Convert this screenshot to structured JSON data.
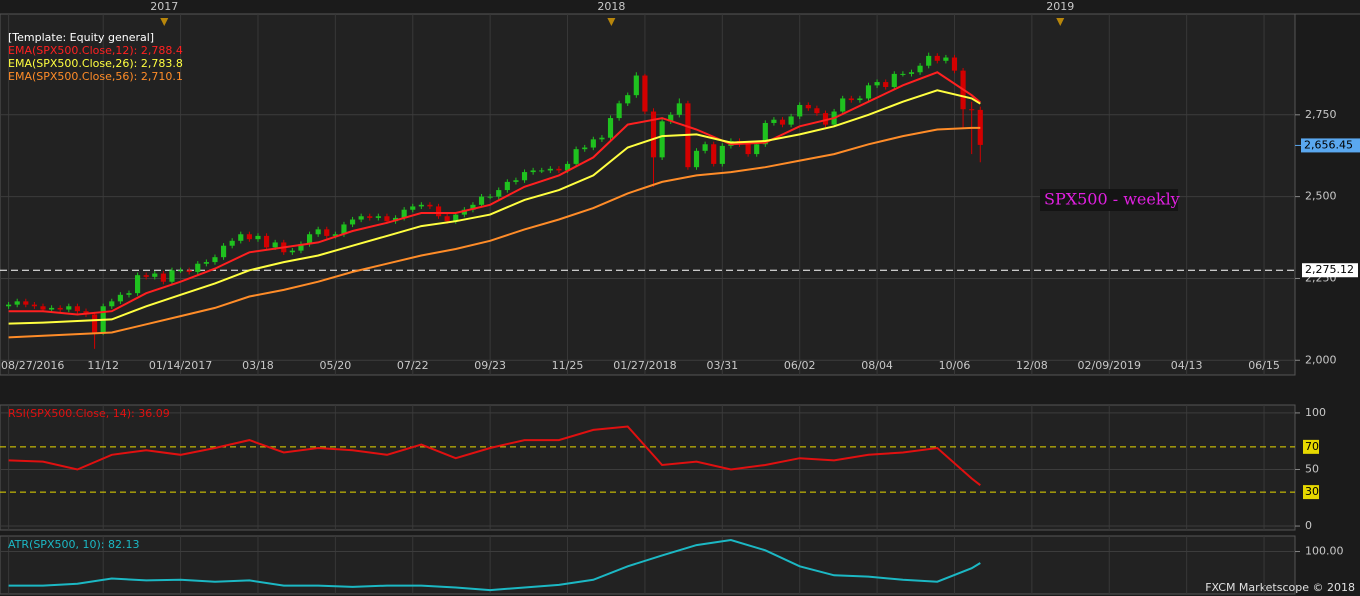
{
  "chart_data": [
    {
      "type": "candlestick",
      "legend_title": "[Template: Equity general]",
      "up_color": "#1fc21f",
      "down_color": "#d30000",
      "open": [
        2165,
        2170,
        2180,
        2170,
        2165,
        2155,
        2160,
        2155,
        2165,
        2150,
        2140,
        2085,
        2165,
        2180,
        2200,
        2205,
        2260,
        2255,
        2265,
        2240,
        2275,
        2275,
        2270,
        2295,
        2300,
        2315,
        2350,
        2365,
        2385,
        2370,
        2380,
        2345,
        2360,
        2330,
        2335,
        2355,
        2385,
        2400,
        2380,
        2385,
        2415,
        2430,
        2440,
        2435,
        2440,
        2425,
        2435,
        2460,
        2470,
        2475,
        2470,
        2440,
        2425,
        2445,
        2460,
        2475,
        2500,
        2500,
        2520,
        2545,
        2550,
        2575,
        2580,
        2580,
        2585,
        2580,
        2600,
        2645,
        2650,
        2675,
        2680,
        2740,
        2785,
        2810,
        2870,
        2760,
        2620,
        2730,
        2750,
        2785,
        2590,
        2640,
        2660,
        2600,
        2655,
        2670,
        2660,
        2630,
        2660,
        2725,
        2735,
        2720,
        2745,
        2780,
        2770,
        2755,
        2720,
        2760,
        2800,
        2795,
        2800,
        2840,
        2850,
        2835,
        2875,
        2875,
        2880,
        2900,
        2930,
        2915,
        2925,
        2885,
        2767,
        2765
      ],
      "high": [
        2178,
        2188,
        2188,
        2178,
        2173,
        2168,
        2168,
        2173,
        2173,
        2158,
        2148,
        2173,
        2188,
        2208,
        2213,
        2268,
        2268,
        2273,
        2273,
        2283,
        2283,
        2283,
        2303,
        2308,
        2323,
        2358,
        2373,
        2393,
        2393,
        2388,
        2388,
        2368,
        2368,
        2343,
        2363,
        2393,
        2408,
        2408,
        2393,
        2423,
        2438,
        2448,
        2448,
        2448,
        2448,
        2443,
        2468,
        2478,
        2483,
        2483,
        2478,
        2448,
        2453,
        2468,
        2483,
        2508,
        2508,
        2528,
        2553,
        2558,
        2583,
        2588,
        2588,
        2593,
        2593,
        2608,
        2653,
        2658,
        2683,
        2688,
        2748,
        2793,
        2818,
        2880,
        2875,
        2770,
        2738,
        2758,
        2800,
        2793,
        2648,
        2668,
        2668,
        2663,
        2678,
        2678,
        2668,
        2668,
        2733,
        2743,
        2743,
        2753,
        2788,
        2788,
        2778,
        2763,
        2768,
        2808,
        2808,
        2808,
        2848,
        2858,
        2858,
        2883,
        2883,
        2888,
        2908,
        2940,
        2938,
        2933,
        2933,
        2893,
        2790,
        2775
      ],
      "low": [
        2157,
        2162,
        2162,
        2157,
        2147,
        2147,
        2147,
        2147,
        2142,
        2132,
        2035,
        2077,
        2157,
        2172,
        2192,
        2197,
        2247,
        2247,
        2232,
        2232,
        2267,
        2262,
        2262,
        2287,
        2292,
        2307,
        2342,
        2357,
        2362,
        2362,
        2337,
        2337,
        2322,
        2322,
        2327,
        2347,
        2377,
        2372,
        2372,
        2377,
        2407,
        2422,
        2427,
        2427,
        2417,
        2417,
        2427,
        2452,
        2462,
        2462,
        2432,
        2417,
        2417,
        2437,
        2452,
        2467,
        2492,
        2492,
        2512,
        2537,
        2542,
        2567,
        2572,
        2572,
        2572,
        2572,
        2592,
        2637,
        2642,
        2667,
        2672,
        2732,
        2777,
        2802,
        2752,
        2530,
        2612,
        2722,
        2742,
        2582,
        2582,
        2632,
        2592,
        2592,
        2647,
        2652,
        2622,
        2622,
        2652,
        2717,
        2712,
        2712,
        2737,
        2762,
        2747,
        2712,
        2712,
        2752,
        2787,
        2787,
        2792,
        2832,
        2827,
        2827,
        2867,
        2867,
        2872,
        2892,
        2907,
        2907,
        2877,
        2710,
        2630,
        2605
      ],
      "close": [
        2170,
        2180,
        2170,
        2165,
        2155,
        2160,
        2155,
        2165,
        2150,
        2140,
        2085,
        2165,
        2180,
        2200,
        2205,
        2260,
        2255,
        2265,
        2240,
        2275,
        2275,
        2270,
        2295,
        2300,
        2315,
        2350,
        2365,
        2385,
        2370,
        2380,
        2345,
        2360,
        2330,
        2335,
        2355,
        2385,
        2400,
        2380,
        2385,
        2415,
        2430,
        2440,
        2435,
        2440,
        2425,
        2435,
        2460,
        2470,
        2475,
        2470,
        2440,
        2425,
        2445,
        2460,
        2475,
        2500,
        2500,
        2520,
        2545,
        2550,
        2575,
        2580,
        2580,
        2585,
        2580,
        2600,
        2645,
        2650,
        2675,
        2680,
        2740,
        2785,
        2810,
        2870,
        2760,
        2620,
        2730,
        2750,
        2785,
        2590,
        2640,
        2660,
        2600,
        2655,
        2670,
        2660,
        2630,
        2660,
        2725,
        2735,
        2720,
        2745,
        2780,
        2770,
        2755,
        2720,
        2760,
        2800,
        2795,
        2800,
        2840,
        2850,
        2835,
        2875,
        2875,
        2880,
        2900,
        2930,
        2915,
        2925,
        2885,
        2767,
        2765,
        2658
      ],
      "series": [
        {
          "name": "EMA(SPX500.Close,12): 2,788.4",
          "color": "#ff2020",
          "x": [
            0,
            4,
            8,
            12,
            16,
            20,
            24,
            28,
            32,
            36,
            40,
            44,
            48,
            52,
            56,
            60,
            64,
            68,
            72,
            76,
            80,
            84,
            88,
            92,
            96,
            100,
            104,
            108,
            112,
            113
          ],
          "values": [
            2150,
            2150,
            2140,
            2150,
            2205,
            2240,
            2280,
            2330,
            2345,
            2360,
            2395,
            2420,
            2450,
            2450,
            2475,
            2530,
            2565,
            2620,
            2720,
            2740,
            2705,
            2660,
            2665,
            2715,
            2740,
            2790,
            2840,
            2880,
            2810,
            2788
          ]
        },
        {
          "name": "EMA(SPX500.Close,26): 2,783.8",
          "color": "#ffff40",
          "x": [
            0,
            4,
            8,
            12,
            16,
            20,
            24,
            28,
            32,
            36,
            40,
            44,
            48,
            52,
            56,
            60,
            64,
            68,
            72,
            76,
            80,
            84,
            88,
            92,
            96,
            100,
            104,
            108,
            112,
            113
          ],
          "values": [
            2112,
            2115,
            2120,
            2125,
            2165,
            2200,
            2235,
            2275,
            2300,
            2320,
            2350,
            2380,
            2410,
            2425,
            2445,
            2490,
            2520,
            2565,
            2650,
            2685,
            2690,
            2665,
            2670,
            2690,
            2715,
            2750,
            2790,
            2825,
            2800,
            2784
          ]
        },
        {
          "name": "EMA(SPX500.Close,56): 2,710.1",
          "color": "#ff8c28",
          "x": [
            0,
            4,
            8,
            12,
            16,
            20,
            24,
            28,
            32,
            36,
            40,
            44,
            48,
            52,
            56,
            60,
            64,
            68,
            72,
            76,
            80,
            84,
            88,
            92,
            96,
            100,
            104,
            108,
            112,
            113
          ],
          "values": [
            2070,
            2075,
            2080,
            2085,
            2110,
            2135,
            2160,
            2195,
            2215,
            2240,
            2270,
            2295,
            2320,
            2340,
            2365,
            2400,
            2430,
            2465,
            2510,
            2545,
            2565,
            2575,
            2590,
            2610,
            2630,
            2660,
            2685,
            2705,
            2710,
            2710
          ]
        }
      ],
      "xlim": [
        -1,
        149.6
      ],
      "xticks": [
        {
          "value": 0,
          "label": "08/27/2016"
        },
        {
          "value": 11,
          "label": "11/12"
        },
        {
          "value": 20,
          "label": "01/14/2017"
        },
        {
          "value": 29,
          "label": "03/18"
        },
        {
          "value": 38,
          "label": "05/20"
        },
        {
          "value": 47,
          "label": "07/22"
        },
        {
          "value": 56,
          "label": "09/23"
        },
        {
          "value": 65,
          "label": "11/25"
        },
        {
          "value": 74,
          "label": "01/27/2018"
        },
        {
          "value": 83,
          "label": "03/31"
        },
        {
          "value": 92,
          "label": "06/02"
        },
        {
          "value": 101,
          "label": "08/04"
        },
        {
          "value": 110,
          "label": "10/06"
        },
        {
          "value": 119,
          "label": "12/08"
        },
        {
          "value": 128,
          "label": "02/09/2019"
        },
        {
          "value": 137,
          "label": "04/13"
        },
        {
          "value": 146,
          "label": "06/15"
        }
      ],
      "year_markers": [
        {
          "value": 18.1,
          "label": "2017"
        },
        {
          "value": 70.1,
          "label": "2018"
        },
        {
          "value": 122.3,
          "label": "2019"
        }
      ],
      "ylim": [
        1955,
        3058
      ],
      "yticks": [
        {
          "value": 2000,
          "label": "2,000"
        },
        {
          "value": 2250,
          "label": "2,250"
        },
        {
          "value": 2500,
          "label": "2,500"
        },
        {
          "value": 2750,
          "label": "2,750"
        }
      ],
      "price_tag": {
        "value": 2656.45,
        "label": "2,656.45"
      },
      "hline": {
        "value": 2275.12,
        "label": "2,275.12"
      },
      "annotation": "SPX500 - weekly",
      "grid": true
    },
    {
      "type": "line",
      "series": [
        {
          "name": "RSI(SPX500.Close, 14): 36.09",
          "color": "#e01010",
          "x": [
            0,
            4,
            8,
            12,
            16,
            20,
            24,
            28,
            32,
            36,
            40,
            44,
            48,
            52,
            56,
            60,
            64,
            68,
            72,
            76,
            80,
            84,
            88,
            92,
            96,
            100,
            104,
            108,
            112,
            113
          ],
          "values": [
            58,
            57,
            50,
            63,
            67,
            63,
            69,
            76,
            65,
            69,
            67,
            63,
            72,
            60,
            69,
            76,
            76,
            85,
            88,
            54,
            57,
            50,
            54,
            60,
            58,
            63,
            65,
            69,
            42,
            36.09
          ]
        }
      ],
      "xlim": [
        -1,
        149.6
      ],
      "ylim": [
        -3.5,
        107
      ],
      "yticks": [
        0,
        50,
        100
      ],
      "levels": [
        70,
        30
      ],
      "level_color": "#e6d800",
      "grid": true
    },
    {
      "type": "line",
      "series": [
        {
          "name": "ATR(SPX500, 10): 82.13",
          "color": "#1cb8c4",
          "x": [
            0,
            4,
            8,
            12,
            16,
            20,
            24,
            28,
            32,
            36,
            40,
            44,
            48,
            52,
            56,
            60,
            64,
            68,
            72,
            76,
            80,
            84,
            88,
            92,
            96,
            100,
            104,
            108,
            112,
            113
          ],
          "values": [
            47,
            47,
            50,
            58,
            55,
            56,
            53,
            55,
            47,
            47,
            45,
            47,
            47,
            44,
            40,
            44,
            48,
            56,
            77,
            94,
            110,
            118,
            102,
            77,
            63,
            61,
            56,
            53,
            74,
            82.13
          ]
        }
      ],
      "xlim": [
        -1,
        149.6
      ],
      "ylim": [
        33.9,
        124.2
      ],
      "yticks": [
        {
          "value": 100,
          "label": "100.00"
        }
      ],
      "grid": true
    }
  ],
  "footer": "FXCM Marketscope © 2018"
}
